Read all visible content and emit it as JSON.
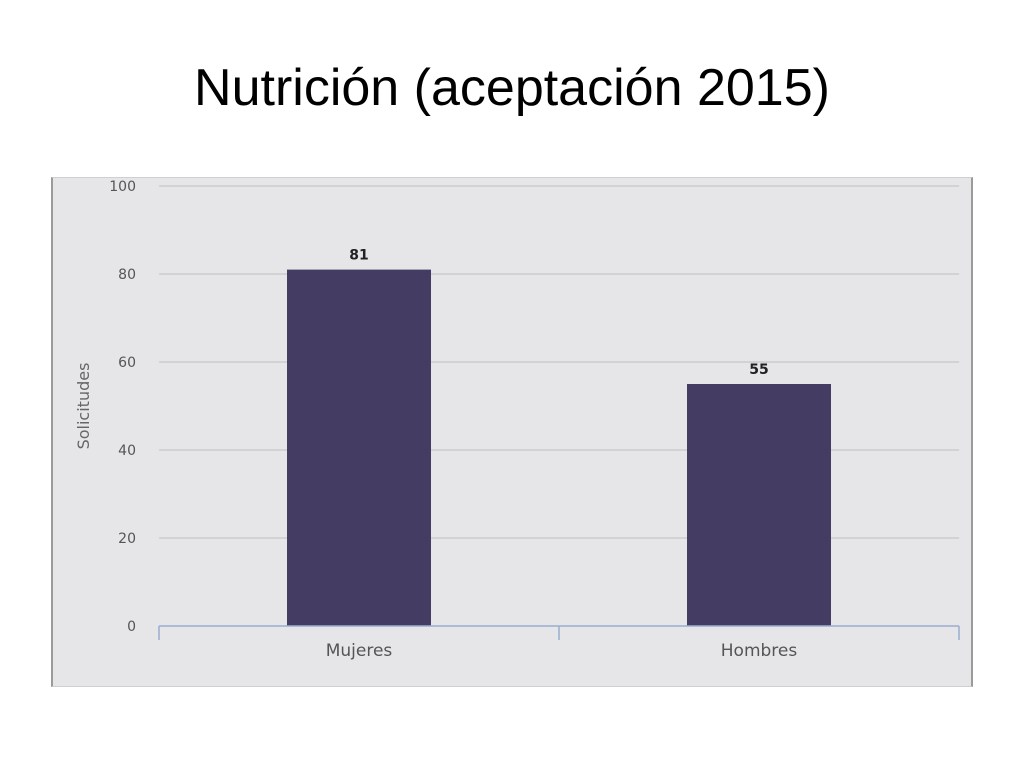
{
  "slide": {
    "title": "Nutrición (aceptación 2015)"
  },
  "colors": {
    "bar": "#443c63",
    "plot_background": "#e6e6e9",
    "gridline": "#cccccc",
    "baseline": "#9aaed0"
  },
  "chart_data": {
    "type": "bar",
    "title": "",
    "xlabel": "",
    "ylabel": "Solicitudes",
    "categories": [
      "Mujeres",
      "Hombres"
    ],
    "values": [
      81,
      55
    ],
    "data_labels": [
      "81",
      "55"
    ],
    "ylim": [
      0,
      100
    ],
    "yticks": [
      0,
      20,
      40,
      60,
      80,
      100
    ],
    "ytick_labels": [
      "0",
      "20",
      "40",
      "60",
      "80",
      "100"
    ],
    "grid": true,
    "legend": "none"
  }
}
